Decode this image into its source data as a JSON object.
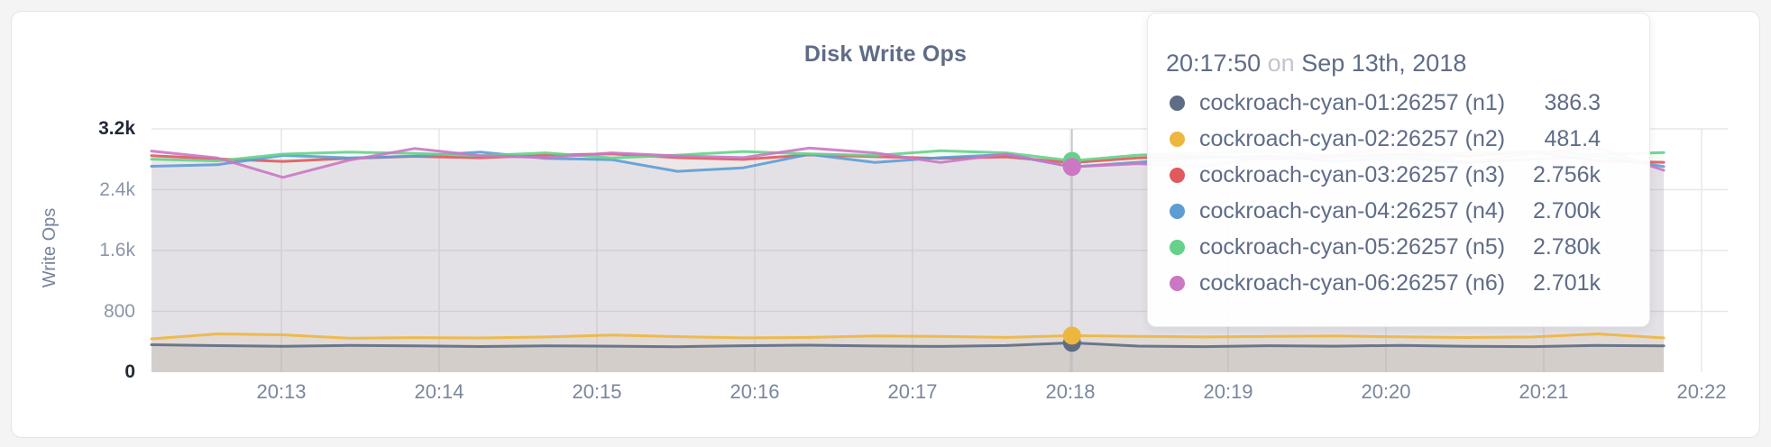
{
  "chart": {
    "title": "Disk Write Ops",
    "y_axis_label": "Write Ops"
  },
  "tooltip": {
    "time": "20:17:50",
    "conjunction": "on",
    "date": "Sep 13th, 2018"
  },
  "chart_data": {
    "type": "area-line",
    "title": "Disk Write Ops",
    "xlabel": "",
    "ylabel": "Write Ops",
    "ylim": [
      0,
      3200
    ],
    "y_ticks": [
      "0",
      "800",
      "1.6k",
      "2.4k",
      "3.2k"
    ],
    "y_tick_values": [
      0,
      800,
      1600,
      2400,
      3200
    ],
    "y_tick_emphasis": [
      "0",
      "3.2k"
    ],
    "x_ticks": [
      "20:13",
      "20:14",
      "20:15",
      "20:16",
      "20:17",
      "20:18",
      "20:19",
      "20:20",
      "20:21",
      "20:22"
    ],
    "x_start": "20:12:00",
    "x_step_seconds": 25,
    "grid": true,
    "legend_position": "tooltip",
    "hover": {
      "time": "20:17:50",
      "date": "Sep 13th, 2018",
      "index": 14
    },
    "series": [
      {
        "name": "cockroach-cyan-01:26257 (n1)",
        "color": "#5E6C84",
        "fill_opacity": 0.12,
        "hover_display": "386.3",
        "values": [
          362,
          350,
          341,
          352,
          346,
          338,
          347,
          342,
          335,
          348,
          356,
          345,
          339,
          351,
          386.3,
          344,
          337,
          349,
          343,
          353,
          341,
          336,
          352,
          346
        ]
      },
      {
        "name": "cockroach-cyan-02:26257 (n2)",
        "color": "#EDB63E",
        "fill_opacity": 0.12,
        "hover_display": "481.4",
        "values": [
          438,
          504,
          492,
          448,
          455,
          450,
          463,
          490,
          468,
          452,
          458,
          478,
          470,
          458,
          481.4,
          472,
          464,
          470,
          476,
          466,
          456,
          464,
          504,
          452
        ]
      },
      {
        "name": "cockroach-cyan-03:26257 (n3)",
        "color": "#E0595C",
        "fill_opacity": 0.07,
        "hover_display": "2.756k",
        "values": [
          2848,
          2805,
          2772,
          2812,
          2838,
          2820,
          2855,
          2872,
          2822,
          2798,
          2858,
          2835,
          2812,
          2832,
          2756,
          2818,
          2842,
          2802,
          2835,
          2865,
          2842,
          2895,
          2778,
          2760
        ]
      },
      {
        "name": "cockroach-cyan-04:26257 (n4)",
        "color": "#5C9DD4",
        "fill_opacity": 0.07,
        "hover_display": "2.700k",
        "values": [
          2708,
          2728,
          2852,
          2818,
          2842,
          2895,
          2812,
          2795,
          2642,
          2688,
          2865,
          2758,
          2822,
          2862,
          2700,
          2762,
          2825,
          2845,
          2775,
          2818,
          2758,
          2802,
          2842,
          2705
        ]
      },
      {
        "name": "cockroach-cyan-05:26257 (n5)",
        "color": "#65D189",
        "fill_opacity": 0.07,
        "hover_display": "2.780k",
        "values": [
          2802,
          2778,
          2868,
          2895,
          2878,
          2848,
          2885,
          2818,
          2855,
          2902,
          2872,
          2850,
          2912,
          2885,
          2780,
          2855,
          2882,
          2905,
          2845,
          2822,
          2885,
          2902,
          2862,
          2888
        ]
      },
      {
        "name": "cockroach-cyan-06:26257 (n6)",
        "color": "#CB77C4",
        "fill_opacity": 0.07,
        "hover_display": "2.701k",
        "values": [
          2908,
          2818,
          2562,
          2788,
          2942,
          2848,
          2822,
          2885,
          2845,
          2822,
          2948,
          2885,
          2758,
          2870,
          2701,
          2742,
          2705,
          2838,
          2855,
          2948,
          2752,
          2878,
          2948,
          2655
        ]
      }
    ],
    "colors": {
      "grid": "#E7E7EA",
      "guideline": "#BCBFC6",
      "title_text": "#5F6C87",
      "axis_text_minor": "#8C95A7",
      "axis_text_major": "#232A36",
      "x_axis_text": "#7A869C"
    }
  }
}
